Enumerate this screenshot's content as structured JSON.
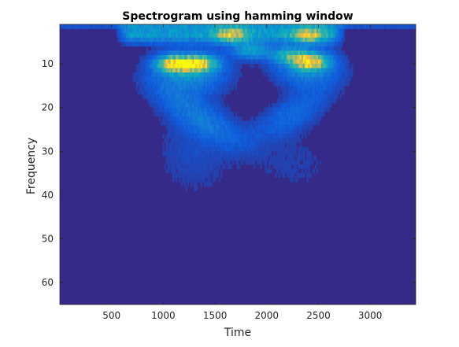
{
  "chart_data": {
    "type": "heatmap",
    "title": "Spectrogram using hamming window",
    "xlabel": "Time",
    "ylabel": "Frequency",
    "xlim": [
      0,
      3440
    ],
    "ylim": [
      1,
      65
    ],
    "y_reversed": true,
    "x_ticks": [
      500,
      1000,
      1500,
      2000,
      2500,
      3000
    ],
    "y_ticks": [
      10,
      20,
      30,
      40,
      50,
      60
    ],
    "grid": false,
    "colormap": "parula",
    "colors": {
      "background_cell": "#352a87",
      "low": "#0f5cdd",
      "mid": "#36b6a5",
      "high": "#a5be6a",
      "peak": "#f9fb0e"
    },
    "hotspots": [
      {
        "time": 1100,
        "freq": 10,
        "intensity": 0.95
      },
      {
        "time": 1350,
        "freq": 10,
        "intensity": 0.9
      },
      {
        "time": 2420,
        "freq": 9.5,
        "intensity": 0.92
      },
      {
        "time": 1650,
        "freq": 3.5,
        "intensity": 0.65
      },
      {
        "time": 2400,
        "freq": 3.5,
        "intensity": 0.6
      },
      {
        "time": 1850,
        "freq": 7,
        "intensity": 0.55
      },
      {
        "time": 2200,
        "freq": 8,
        "intensity": 0.5
      }
    ]
  }
}
